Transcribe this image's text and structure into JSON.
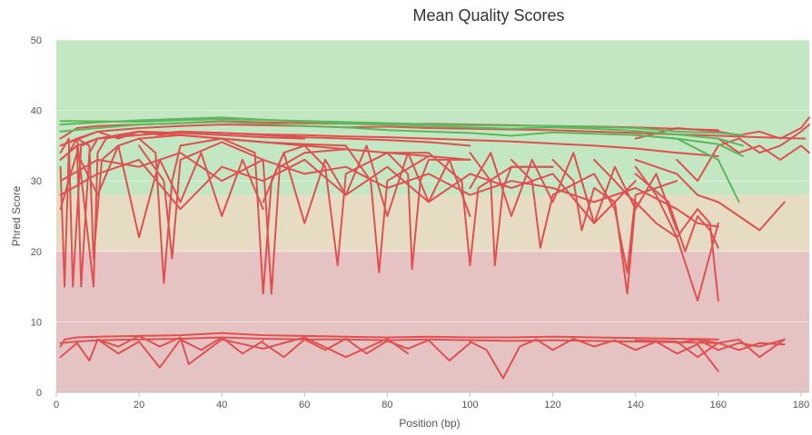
{
  "chart_data": {
    "type": "line",
    "title": "Mean Quality Scores",
    "xlabel": "Position (bp)",
    "ylabel": "Phred Score",
    "xlim": [
      0,
      182
    ],
    "ylim": [
      0,
      50
    ],
    "x_ticks": [
      0,
      20,
      40,
      60,
      80,
      100,
      120,
      140,
      160,
      180
    ],
    "y_ticks": [
      0,
      10,
      20,
      30,
      40,
      50
    ],
    "grid": true,
    "legend": "none",
    "bands": [
      {
        "from": 28,
        "to": 50,
        "color": "#c3e6c3"
      },
      {
        "from": 20,
        "to": 28,
        "color": "#e6dcc3"
      },
      {
        "from": 0,
        "to": 20,
        "color": "#e6c3c3"
      }
    ],
    "colors": {
      "fail": "#e05050",
      "pass": "#5cb85c"
    },
    "series": [
      {
        "status": "fail",
        "x": [
          1,
          5,
          10,
          20,
          30,
          40,
          50,
          60,
          70,
          80,
          90,
          100,
          110,
          120,
          130,
          140,
          150,
          160
        ],
        "values": [
          36,
          37.5,
          37.8,
          38,
          38.2,
          38.5,
          38.3,
          38.2,
          38.1,
          38,
          38.1,
          38,
          37.9,
          37.8,
          37.7,
          37.6,
          37.4,
          37.2
        ]
      },
      {
        "status": "fail",
        "x": [
          1,
          10,
          20,
          30,
          40,
          50,
          60,
          70,
          80,
          90,
          100,
          110,
          120,
          130,
          140,
          150,
          160,
          170,
          181
        ],
        "values": [
          35,
          37,
          37.5,
          37.8,
          38,
          37.9,
          37.8,
          37.6,
          37.7,
          37.5,
          37.4,
          37.3,
          37.2,
          37,
          36.8,
          36.6,
          36.4,
          36.2,
          36
        ]
      },
      {
        "status": "fail",
        "x": [
          1,
          5,
          10,
          20,
          30,
          40,
          50,
          60,
          70,
          80,
          90,
          100,
          110,
          120,
          130,
          140,
          150,
          160
        ],
        "values": [
          33,
          35,
          36,
          36.5,
          37,
          36.8,
          36.6,
          36.5,
          36.3,
          36.2,
          36,
          35.8,
          35.6,
          35.3,
          35,
          34.6,
          34,
          33.5
        ]
      },
      {
        "status": "fail",
        "x": [
          1,
          2,
          3,
          5,
          10,
          15,
          20,
          25,
          30,
          40,
          50,
          60,
          70,
          80,
          90,
          100
        ],
        "values": [
          32,
          15,
          34,
          36,
          37,
          36,
          37,
          36.5,
          37,
          36.8,
          36.5,
          36.2,
          36,
          35.8,
          35.5,
          35
        ]
      },
      {
        "status": "fail",
        "x": [
          1,
          3,
          4,
          6,
          10,
          20,
          30,
          40,
          50,
          60
        ],
        "values": [
          34,
          36,
          15,
          35,
          36,
          37,
          36.8,
          36.5,
          36.2,
          36
        ]
      },
      {
        "status": "fail",
        "x": [
          1,
          5,
          6,
          8,
          10,
          20,
          30,
          40,
          50,
          60,
          70
        ],
        "values": [
          33,
          35,
          15,
          34,
          36,
          37,
          36.5,
          36,
          35.5,
          35.2,
          35
        ]
      },
      {
        "status": "fail",
        "x": [
          1,
          5,
          9,
          10,
          12,
          20,
          30
        ],
        "values": [
          35,
          36,
          15,
          34,
          36,
          37,
          36.5
        ]
      },
      {
        "status": "fail",
        "x": [
          5,
          8,
          9,
          11,
          15,
          20,
          30,
          40
        ],
        "values": [
          36,
          35,
          19,
          33,
          35,
          36,
          36.5,
          36
        ]
      },
      {
        "status": "fail",
        "x": [
          20,
          24,
          26,
          28,
          30,
          40,
          50,
          60
        ],
        "values": [
          36,
          34,
          15.5,
          30,
          35,
          36,
          35.5,
          35
        ]
      },
      {
        "status": "fail",
        "x": [
          20,
          26,
          28,
          30,
          40
        ],
        "values": [
          35,
          30,
          19,
          33,
          35.5
        ]
      },
      {
        "status": "fail",
        "x": [
          40,
          48,
          50,
          52,
          55,
          60,
          70,
          80,
          90
        ],
        "values": [
          36,
          34,
          14,
          30,
          34,
          35,
          34.5,
          34,
          33.5
        ]
      },
      {
        "status": "fail",
        "x": [
          40,
          50,
          52,
          54,
          60,
          70
        ],
        "values": [
          35.5,
          33,
          14,
          32,
          34,
          34.5
        ]
      },
      {
        "status": "fail",
        "x": [
          60,
          65,
          68,
          70,
          80,
          90
        ],
        "values": [
          35,
          32,
          18,
          31,
          34,
          34
        ]
      },
      {
        "status": "fail",
        "x": [
          70,
          76,
          78,
          80,
          90,
          100
        ],
        "values": [
          35,
          30,
          17,
          30,
          33.5,
          33
        ]
      },
      {
        "status": "fail",
        "x": [
          80,
          85,
          86,
          88,
          90,
          100
        ],
        "values": [
          34,
          31,
          17.5,
          30,
          33,
          33
        ]
      },
      {
        "status": "fail",
        "x": [
          90,
          98,
          100,
          102,
          110,
          120
        ],
        "values": [
          34,
          30,
          18,
          29,
          32,
          32
        ]
      },
      {
        "status": "fail",
        "x": [
          100,
          105,
          106,
          108,
          110,
          120
        ],
        "values": [
          34,
          30,
          18,
          29,
          32,
          32
        ]
      },
      {
        "status": "fail",
        "x": [
          110,
          115,
          117,
          120,
          130,
          135,
          138,
          140,
          150
        ],
        "values": [
          33,
          30,
          20.5,
          28,
          31,
          26,
          17,
          28,
          30
        ]
      },
      {
        "status": "fail",
        "x": [
          120,
          125,
          127,
          130,
          135,
          138,
          140
        ],
        "values": [
          33,
          30,
          23,
          29,
          27,
          14,
          27
        ]
      },
      {
        "status": "fail",
        "x": [
          130,
          135,
          138,
          140,
          145,
          150,
          155,
          160
        ],
        "values": [
          33,
          30,
          28,
          27,
          24,
          22,
          13,
          24
        ]
      },
      {
        "status": "fail",
        "x": [
          140,
          145,
          150,
          155,
          158,
          160
        ],
        "values": [
          32,
          28,
          22,
          26,
          24,
          13
        ]
      },
      {
        "status": "fail",
        "x": [
          140,
          148,
          152,
          155,
          158,
          160
        ],
        "values": [
          31,
          27,
          20,
          25,
          23,
          20.5
        ]
      },
      {
        "status": "fail",
        "x": [
          140,
          150,
          155,
          160,
          165,
          170,
          176
        ],
        "values": [
          33,
          31,
          28,
          27,
          25,
          23,
          27
        ]
      },
      {
        "status": "fail",
        "x": [
          1,
          10,
          20,
          30,
          40,
          50,
          60,
          70,
          80,
          90,
          100,
          110,
          120,
          130,
          140,
          150,
          155,
          160
        ],
        "values": [
          30,
          33,
          32,
          34,
          30,
          33,
          31,
          32,
          29,
          31,
          28,
          30,
          29,
          27,
          29,
          26,
          24,
          23.5
        ]
      },
      {
        "status": "fail",
        "x": [
          1,
          10,
          20,
          30,
          40,
          50,
          60,
          70,
          80,
          90,
          100,
          110,
          120,
          130,
          140
        ],
        "values": [
          28,
          31,
          33,
          26,
          32,
          30,
          33,
          28,
          32,
          27,
          31,
          29,
          31,
          24,
          30
        ]
      },
      {
        "status": "fail",
        "x": [
          1,
          5,
          10,
          15,
          20,
          25,
          30,
          35,
          40,
          45,
          50
        ],
        "values": [
          26,
          34,
          28,
          35,
          22,
          33,
          27,
          34,
          25,
          33,
          26
        ]
      },
      {
        "status": "fail",
        "x": [
          50,
          55,
          60,
          65,
          70,
          75,
          80,
          85,
          90,
          95,
          100
        ],
        "values": [
          27,
          34,
          24,
          33,
          28,
          35,
          25,
          34,
          27,
          33,
          25
        ]
      },
      {
        "status": "fail",
        "x": [
          100,
          105,
          110,
          115,
          120,
          125,
          130,
          135,
          140,
          145,
          150
        ],
        "values": [
          29,
          34,
          25,
          33,
          27,
          34,
          24,
          32,
          26,
          31,
          23
        ]
      },
      {
        "status": "fail",
        "x": [
          150,
          155,
          160,
          165,
          170,
          175,
          180,
          182
        ],
        "values": [
          33,
          30,
          35,
          36,
          34,
          35,
          37,
          38
        ]
      },
      {
        "status": "fail",
        "x": [
          140,
          150,
          160,
          165,
          170,
          175,
          180,
          182
        ],
        "values": [
          36,
          37.5,
          37,
          36.5,
          37,
          36,
          37.5,
          39
        ]
      },
      {
        "status": "fail",
        "x": [
          160,
          165,
          170,
          175,
          180,
          182
        ],
        "values": [
          36,
          34,
          35,
          33,
          35,
          34
        ]
      },
      {
        "status": "pass",
        "x": [
          1,
          10,
          20,
          30,
          40,
          50,
          60,
          70,
          80,
          90,
          100,
          110,
          120,
          130,
          140,
          150,
          160,
          166
        ],
        "values": [
          38,
          38.3,
          38.6,
          38.8,
          39,
          38.7,
          38.4,
          38.1,
          38,
          37.8,
          37.6,
          37.4,
          37.6,
          37.4,
          37.1,
          36.6,
          36,
          35
        ]
      },
      {
        "status": "pass",
        "x": [
          1,
          10,
          20,
          30,
          40,
          50,
          60,
          70,
          80,
          90,
          100,
          110,
          120,
          130,
          140,
          150,
          160,
          166
        ],
        "values": [
          37,
          37.5,
          38,
          38.2,
          38.4,
          38.1,
          37.8,
          37.6,
          37.2,
          37,
          36.8,
          36.4,
          36.9,
          36.7,
          36.5,
          36,
          35.2,
          33.5
        ]
      },
      {
        "status": "pass",
        "x": [
          1,
          20,
          40,
          60,
          80,
          100,
          120,
          140,
          150,
          160,
          166
        ],
        "values": [
          38.5,
          38.4,
          38.8,
          38.5,
          38.2,
          37.9,
          37.8,
          37.5,
          37,
          36.8,
          36.5
        ]
      },
      {
        "status": "pass",
        "x": [
          140,
          150,
          155,
          160,
          165
        ],
        "values": [
          36.5,
          36,
          34.5,
          33,
          27
        ]
      },
      {
        "status": "fail",
        "x": [
          1,
          2,
          5,
          10,
          20,
          30,
          40,
          50,
          60,
          70,
          80,
          90,
          100,
          110,
          120,
          130,
          140,
          150,
          160
        ],
        "values": [
          6.5,
          7.5,
          7.8,
          7.9,
          8,
          8.1,
          8.4,
          8.1,
          8,
          7.9,
          7.8,
          7.9,
          7.8,
          7.8,
          7.9,
          7.8,
          7.7,
          7.6,
          7.5
        ]
      },
      {
        "status": "fail",
        "x": [
          1,
          5,
          10,
          20,
          30,
          40,
          50,
          60,
          70,
          80,
          90,
          100,
          110,
          120,
          130,
          140,
          150,
          160
        ],
        "values": [
          7,
          7.2,
          7.4,
          7.5,
          7.6,
          7.8,
          7.6,
          7.5,
          7.5,
          7.4,
          7.5,
          7.4,
          7.3,
          7.4,
          7.3,
          7.2,
          7.1,
          7
        ]
      },
      {
        "status": "fail",
        "x": [
          1,
          5,
          8,
          10,
          15,
          20,
          25,
          30,
          35,
          40,
          45,
          50
        ],
        "values": [
          5,
          7,
          4.5,
          7.5,
          5.5,
          7.2,
          3.5,
          7.5,
          6,
          7.8,
          5.5,
          7.3
        ]
      },
      {
        "status": "fail",
        "x": [
          50,
          55,
          60,
          65,
          70,
          75,
          80,
          85,
          90,
          95,
          100
        ],
        "values": [
          7,
          5,
          7.5,
          6,
          7.6,
          5.5,
          7.3,
          6.2,
          7.4,
          4.5,
          7
        ]
      },
      {
        "status": "fail",
        "x": [
          100,
          104,
          108,
          112,
          116,
          120,
          125,
          130,
          135,
          140,
          145,
          150,
          155,
          160
        ],
        "values": [
          7.2,
          6,
          2,
          6.5,
          7.5,
          6,
          7.6,
          6.5,
          7.4,
          6,
          7.2,
          5.5,
          6.8,
          3
        ]
      },
      {
        "status": "fail",
        "x": [
          10,
          15,
          20,
          25,
          30,
          32,
          40,
          50,
          60,
          70,
          80,
          85
        ],
        "values": [
          7.5,
          6.5,
          8,
          6.5,
          7.8,
          4,
          7.5,
          6.2,
          7.8,
          5,
          7.6,
          5.5
        ]
      },
      {
        "status": "fail",
        "x": [
          150,
          155,
          160,
          165,
          170,
          176
        ],
        "values": [
          7,
          7.5,
          6,
          7,
          6.5,
          7.5
        ]
      },
      {
        "status": "fail",
        "x": [
          155,
          160,
          165,
          170,
          176
        ],
        "values": [
          7.5,
          7,
          6,
          7,
          6.8
        ]
      },
      {
        "status": "fail",
        "x": [
          140,
          150,
          155,
          160,
          165,
          170,
          176
        ],
        "values": [
          7.4,
          7.2,
          5,
          7,
          7.5,
          5,
          7.5
        ]
      }
    ]
  }
}
